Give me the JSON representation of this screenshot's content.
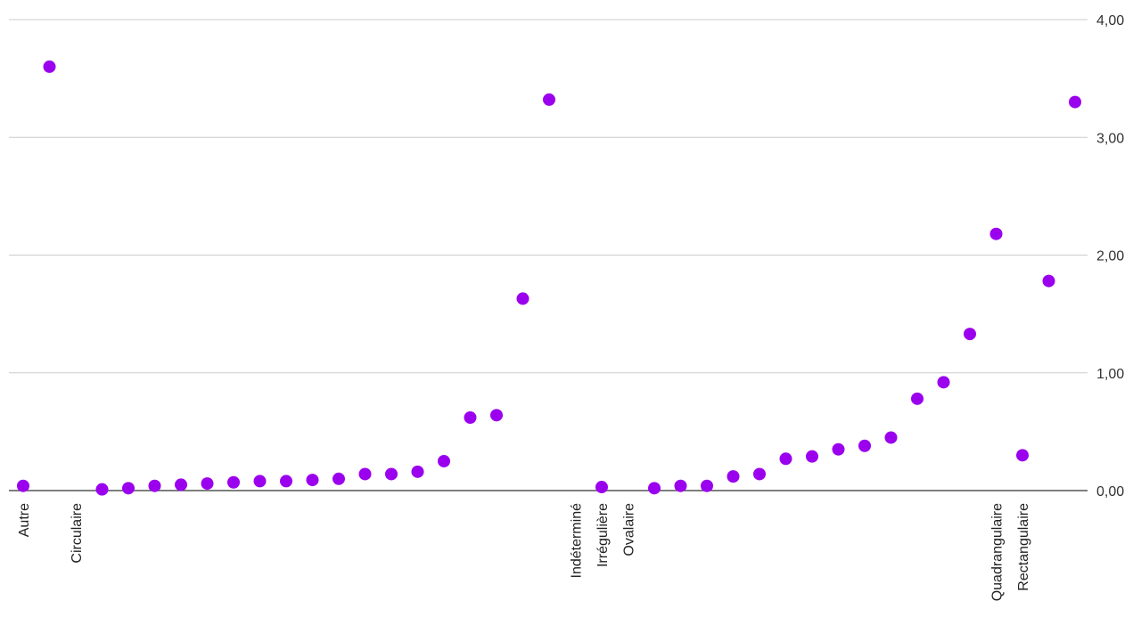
{
  "chart_data": {
    "type": "scatter",
    "title": "",
    "xlabel": "",
    "ylabel": "",
    "ylim": [
      0,
      4
    ],
    "y_ticks": [
      "0,00",
      "1,00",
      "2,00",
      "3,00",
      "4,00"
    ],
    "y_axis_side": "right",
    "grid": true,
    "legend": "none",
    "marker_color": "#9b00ee",
    "x_tick_labels": [
      {
        "index": 0,
        "label": "Autre"
      },
      {
        "index": 2,
        "label": "Circulaire"
      },
      {
        "index": 21,
        "label": "Indéterminé"
      },
      {
        "index": 22,
        "label": "Irrégulière"
      },
      {
        "index": 23,
        "label": "Ovalaire"
      },
      {
        "index": 37,
        "label": "Quadrangulaire"
      },
      {
        "index": 38,
        "label": "Rectangulaire"
      }
    ],
    "points": [
      {
        "x": 0,
        "y": 0.04
      },
      {
        "x": 1,
        "y": 3.6
      },
      {
        "x": 3,
        "y": 0.01
      },
      {
        "x": 4,
        "y": 0.02
      },
      {
        "x": 5,
        "y": 0.04
      },
      {
        "x": 6,
        "y": 0.05
      },
      {
        "x": 7,
        "y": 0.06
      },
      {
        "x": 8,
        "y": 0.07
      },
      {
        "x": 9,
        "y": 0.08
      },
      {
        "x": 10,
        "y": 0.08
      },
      {
        "x": 11,
        "y": 0.09
      },
      {
        "x": 12,
        "y": 0.1
      },
      {
        "x": 13,
        "y": 0.14
      },
      {
        "x": 14,
        "y": 0.14
      },
      {
        "x": 15,
        "y": 0.16
      },
      {
        "x": 16,
        "y": 0.25
      },
      {
        "x": 17,
        "y": 0.62
      },
      {
        "x": 18,
        "y": 0.64
      },
      {
        "x": 19,
        "y": 1.63
      },
      {
        "x": 20,
        "y": 3.32
      },
      {
        "x": 22,
        "y": 0.03
      },
      {
        "x": 24,
        "y": 0.02
      },
      {
        "x": 25,
        "y": 0.04
      },
      {
        "x": 26,
        "y": 0.04
      },
      {
        "x": 27,
        "y": 0.12
      },
      {
        "x": 28,
        "y": 0.14
      },
      {
        "x": 29,
        "y": 0.27
      },
      {
        "x": 30,
        "y": 0.29
      },
      {
        "x": 31,
        "y": 0.35
      },
      {
        "x": 32,
        "y": 0.38
      },
      {
        "x": 33,
        "y": 0.45
      },
      {
        "x": 34,
        "y": 0.78
      },
      {
        "x": 35,
        "y": 0.92
      },
      {
        "x": 36,
        "y": 1.33
      },
      {
        "x": 37,
        "y": 2.18
      },
      {
        "x": 38,
        "y": 0.3
      },
      {
        "x": 39,
        "y": 1.78
      },
      {
        "x": 40,
        "y": 3.3
      }
    ]
  }
}
